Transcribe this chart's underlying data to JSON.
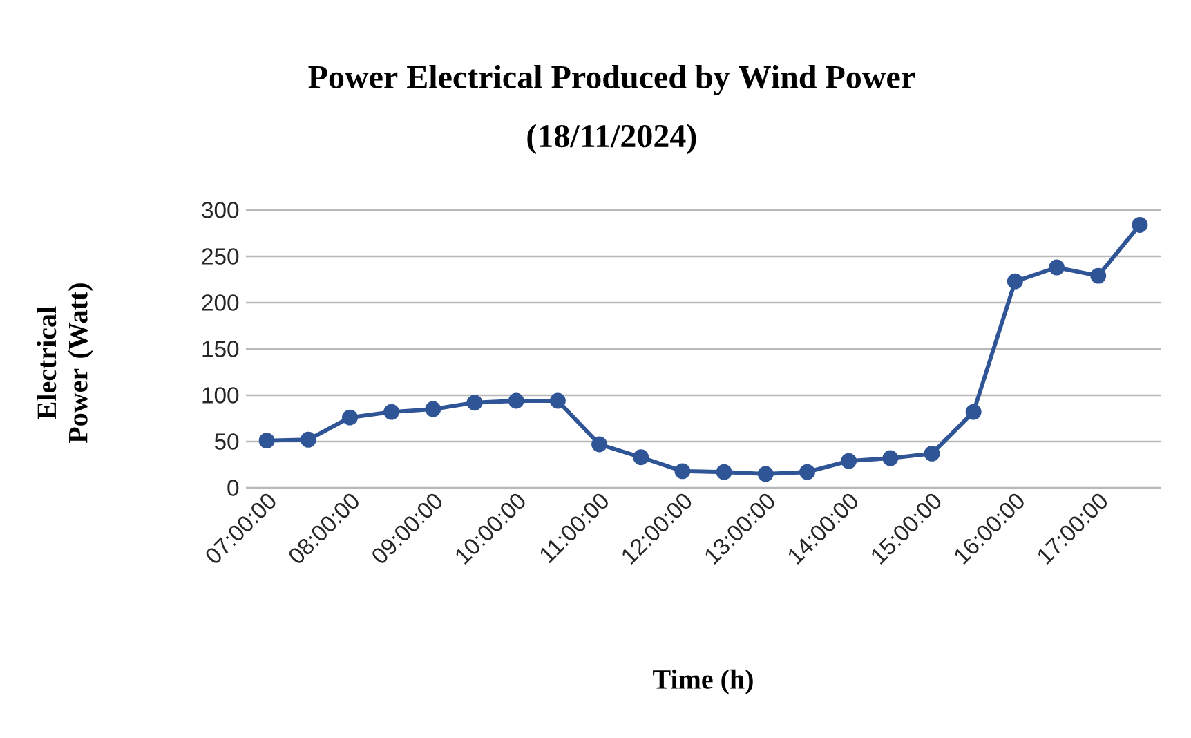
{
  "chart_data": {
    "type": "line",
    "title": "Power Electrical Produced by Wind Power",
    "subtitle": "(18/11/2024)",
    "xlabel": "Time (h)",
    "ylabel": "Electrical Power (Watt)",
    "categories": [
      "07:00:00",
      null,
      "08:00:00",
      null,
      "09:00:00",
      null,
      "10:00:00",
      null,
      "11:00:00",
      null,
      "12:00:00",
      null,
      "13:00:00",
      null,
      "14:00:00",
      null,
      "15:00:00",
      null,
      "16:00:00",
      null,
      "17:00:00",
      null
    ],
    "series": [
      {
        "color": "#2f5597",
        "values": [
          51,
          52,
          76,
          82,
          85,
          92,
          94,
          94,
          47,
          33,
          18,
          17,
          15,
          17,
          29,
          32,
          37,
          82,
          223,
          238,
          229,
          284
        ]
      }
    ],
    "ylim": [
      0,
      300
    ],
    "yticks": [
      0,
      50,
      100,
      150,
      200,
      250,
      300
    ],
    "grid": "y",
    "marker": "circle",
    "line_style": "solid"
  }
}
